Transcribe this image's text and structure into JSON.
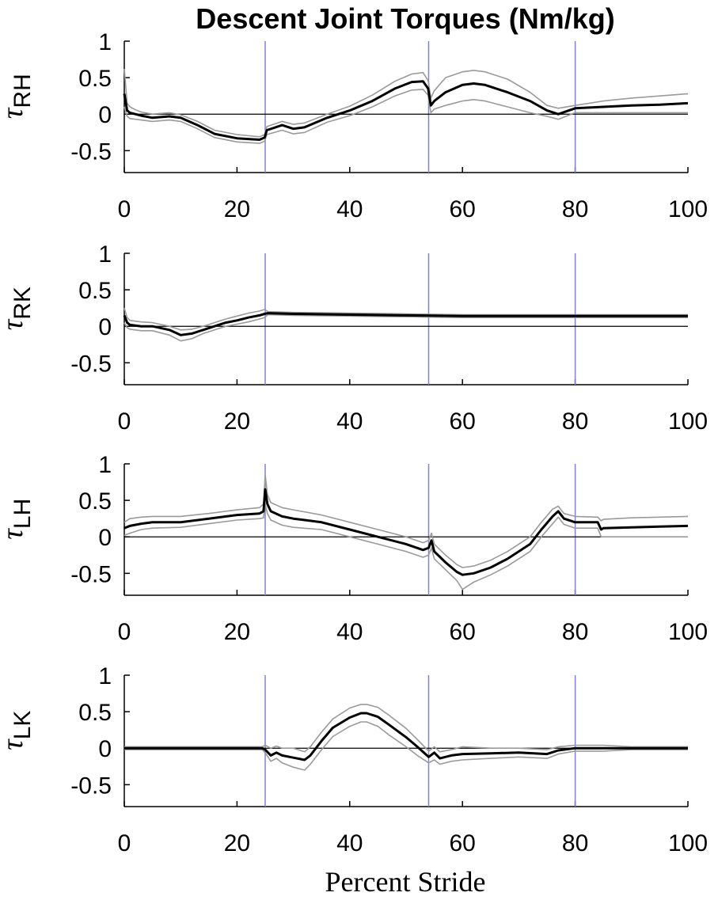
{
  "figure": {
    "title": "Descent Joint Torques (Nm/kg)",
    "xlabel": "Percent Stride"
  },
  "colors": {
    "mean_line": "#000000",
    "band_line": "#9a9a9a",
    "phase_line": "#8080e0",
    "zero_line": "#000000"
  },
  "chart_data": [
    {
      "type": "line",
      "ylabel": {
        "symbol": "τ",
        "subscript": "RH"
      },
      "xlim": [
        0,
        100
      ],
      "ylim": [
        -0.8,
        1
      ],
      "x_ticks": [
        0,
        20,
        40,
        60,
        80,
        100
      ],
      "x_tick_labels": [
        "0",
        "20",
        "40",
        "60",
        "80",
        "100"
      ],
      "y_ticks": [
        1,
        0.5,
        0,
        -0.5
      ],
      "y_tick_labels": [
        "1",
        "0.5",
        "0",
        "-0.5"
      ],
      "phase_lines_x": [
        25,
        54,
        80
      ],
      "x": [
        0,
        0.5,
        1,
        2,
        3,
        5,
        8,
        10,
        13,
        16,
        20,
        24,
        24.9,
        25.3,
        28,
        30,
        32,
        36,
        40,
        44,
        48,
        51,
        53,
        53.9,
        54.4,
        55,
        57,
        60,
        62,
        64,
        68,
        72,
        75,
        77,
        80,
        85,
        90,
        95,
        100
      ],
      "series": [
        {
          "role": "mean",
          "values": [
            0.28,
            0.05,
            0.02,
            0.0,
            -0.02,
            -0.05,
            -0.03,
            -0.05,
            -0.15,
            -0.27,
            -0.33,
            -0.35,
            -0.32,
            -0.22,
            -0.15,
            -0.2,
            -0.18,
            -0.05,
            0.05,
            0.18,
            0.35,
            0.44,
            0.45,
            0.35,
            0.12,
            0.18,
            0.3,
            0.4,
            0.42,
            0.4,
            0.3,
            0.18,
            0.05,
            0.0,
            0.08,
            0.1,
            0.12,
            0.13,
            0.15
          ]
        },
        {
          "role": "upper",
          "values": [
            0.62,
            0.15,
            0.1,
            0.06,
            0.03,
            0.0,
            0.02,
            -0.01,
            -0.1,
            -0.22,
            -0.28,
            -0.31,
            -0.28,
            -0.17,
            -0.1,
            -0.14,
            -0.12,
            0.0,
            0.11,
            0.26,
            0.45,
            0.55,
            0.57,
            0.46,
            0.22,
            0.32,
            0.5,
            0.58,
            0.6,
            0.58,
            0.48,
            0.3,
            0.12,
            0.08,
            0.12,
            0.18,
            0.22,
            0.25,
            0.28
          ]
        },
        {
          "role": "lower",
          "values": [
            0.1,
            -0.03,
            -0.06,
            -0.07,
            -0.08,
            -0.1,
            -0.08,
            -0.1,
            -0.2,
            -0.32,
            -0.38,
            -0.4,
            -0.37,
            -0.28,
            -0.22,
            -0.27,
            -0.25,
            -0.11,
            -0.02,
            0.1,
            0.25,
            0.33,
            0.34,
            0.26,
            0.02,
            0.07,
            0.12,
            0.18,
            0.2,
            0.18,
            0.1,
            0.02,
            -0.03,
            -0.07,
            0.02,
            0.02,
            0.02,
            0.02,
            0.02
          ]
        }
      ]
    },
    {
      "type": "line",
      "ylabel": {
        "symbol": "τ",
        "subscript": "RK"
      },
      "xlim": [
        0,
        100
      ],
      "ylim": [
        -0.8,
        1
      ],
      "x_ticks": [
        0,
        20,
        40,
        60,
        80,
        100
      ],
      "x_tick_labels": [
        "0",
        "20",
        "40",
        "60",
        "80",
        "100"
      ],
      "y_ticks": [
        1,
        0.5,
        0,
        -0.5
      ],
      "y_tick_labels": [
        "1",
        "0.5",
        "0",
        "-0.5"
      ],
      "phase_lines_x": [
        25,
        54,
        80
      ],
      "x": [
        0,
        0.5,
        1,
        3,
        5,
        8,
        10,
        12,
        14,
        16,
        18,
        20,
        22,
        24,
        24.9,
        25.5,
        30,
        40,
        50,
        60,
        70,
        80,
        90,
        100
      ],
      "series": [
        {
          "role": "mean",
          "values": [
            0.15,
            0.05,
            0.02,
            0.0,
            0.0,
            -0.05,
            -0.12,
            -0.1,
            -0.05,
            0.0,
            0.05,
            0.08,
            0.12,
            0.15,
            0.17,
            0.18,
            0.17,
            0.16,
            0.15,
            0.14,
            0.14,
            0.14,
            0.14,
            0.14
          ]
        },
        {
          "role": "upper",
          "values": [
            0.25,
            0.12,
            0.08,
            0.06,
            0.05,
            0.0,
            -0.05,
            -0.04,
            0.0,
            0.05,
            0.1,
            0.14,
            0.18,
            0.21,
            0.23,
            0.2,
            0.19,
            0.18,
            0.17,
            0.16,
            0.16,
            0.16,
            0.16,
            0.16
          ]
        },
        {
          "role": "lower",
          "values": [
            0.05,
            -0.02,
            -0.04,
            -0.06,
            -0.06,
            -0.12,
            -0.2,
            -0.17,
            -0.1,
            -0.05,
            0.0,
            0.03,
            0.06,
            0.1,
            0.12,
            0.16,
            0.15,
            0.14,
            0.13,
            0.12,
            0.12,
            0.12,
            0.12,
            0.12
          ]
        }
      ]
    },
    {
      "type": "line",
      "ylabel": {
        "symbol": "τ",
        "subscript": "LH"
      },
      "xlim": [
        0,
        100
      ],
      "ylim": [
        -0.8,
        1
      ],
      "x_ticks": [
        0,
        20,
        40,
        60,
        80,
        100
      ],
      "x_tick_labels": [
        "0",
        "20",
        "40",
        "60",
        "80",
        "100"
      ],
      "y_ticks": [
        1,
        0.5,
        0,
        -0.5
      ],
      "y_tick_labels": [
        "1",
        "0.5",
        "0",
        "-0.5"
      ],
      "phase_lines_x": [
        25,
        54,
        80
      ],
      "x": [
        0,
        1,
        3,
        5,
        10,
        15,
        20,
        24,
        24.7,
        25,
        25.4,
        26,
        28,
        30,
        35,
        40,
        45,
        50,
        53,
        54,
        54.5,
        55,
        57,
        59,
        60,
        62,
        65,
        68,
        72,
        74,
        76,
        77,
        78,
        80,
        84,
        84.6,
        85,
        90,
        95,
        100
      ],
      "series": [
        {
          "role": "mean",
          "values": [
            0.12,
            0.15,
            0.18,
            0.2,
            0.2,
            0.25,
            0.3,
            0.32,
            0.35,
            0.65,
            0.45,
            0.35,
            0.28,
            0.25,
            0.2,
            0.1,
            0.0,
            -0.1,
            -0.18,
            -0.15,
            -0.05,
            -0.2,
            -0.35,
            -0.48,
            -0.52,
            -0.5,
            -0.42,
            -0.3,
            -0.1,
            0.1,
            0.28,
            0.35,
            0.25,
            0.2,
            0.2,
            0.1,
            0.12,
            0.13,
            0.14,
            0.15
          ]
        },
        {
          "role": "upper",
          "values": [
            0.2,
            0.25,
            0.27,
            0.28,
            0.28,
            0.32,
            0.37,
            0.4,
            0.45,
            0.85,
            0.58,
            0.47,
            0.4,
            0.37,
            0.3,
            0.2,
            0.1,
            0.0,
            -0.08,
            -0.05,
            0.05,
            -0.1,
            -0.25,
            -0.38,
            -0.42,
            -0.4,
            -0.32,
            -0.2,
            0.0,
            0.2,
            0.38,
            0.42,
            0.32,
            0.28,
            0.27,
            0.22,
            0.24,
            0.26,
            0.27,
            0.28
          ]
        },
        {
          "role": "lower",
          "values": [
            0.02,
            0.05,
            0.1,
            0.12,
            0.13,
            0.18,
            0.23,
            0.25,
            0.26,
            0.45,
            0.32,
            0.23,
            0.16,
            0.13,
            0.1,
            0.0,
            -0.1,
            -0.2,
            -0.28,
            -0.25,
            -0.15,
            -0.3,
            -0.45,
            -0.6,
            -0.72,
            -0.62,
            -0.52,
            -0.4,
            -0.2,
            0.0,
            0.18,
            0.27,
            0.17,
            0.12,
            0.12,
            0.0,
            0.0,
            0.0,
            0.0,
            0.0
          ]
        }
      ]
    },
    {
      "type": "line",
      "ylabel": {
        "symbol": "τ",
        "subscript": "LK"
      },
      "xlim": [
        0,
        100
      ],
      "ylim": [
        -0.8,
        1
      ],
      "x_ticks": [
        0,
        20,
        40,
        60,
        80,
        100
      ],
      "x_tick_labels": [
        "0",
        "20",
        "40",
        "60",
        "80",
        "100"
      ],
      "y_ticks": [
        1,
        0.5,
        0,
        -0.5
      ],
      "y_tick_labels": [
        "1",
        "0.5",
        "0",
        "-0.5"
      ],
      "phase_lines_x": [
        25,
        54,
        80
      ],
      "x": [
        0,
        10,
        20,
        24.5,
        25,
        26,
        27,
        28,
        30,
        32,
        33,
        35,
        37,
        40,
        42,
        43,
        45,
        47,
        50,
        52,
        54,
        55,
        56,
        58,
        60,
        65,
        70,
        75,
        77,
        80,
        85,
        90,
        100
      ],
      "series": [
        {
          "role": "mean",
          "values": [
            0.0,
            0.0,
            0.0,
            0.0,
            -0.02,
            -0.1,
            -0.06,
            -0.1,
            -0.13,
            -0.16,
            -0.1,
            0.1,
            0.28,
            0.42,
            0.48,
            0.48,
            0.43,
            0.32,
            0.15,
            0.02,
            -0.12,
            -0.06,
            -0.14,
            -0.1,
            -0.08,
            -0.07,
            -0.06,
            -0.08,
            -0.03,
            0.0,
            0.0,
            0.0,
            0.0
          ]
        },
        {
          "role": "upper",
          "values": [
            0.02,
            0.02,
            0.02,
            0.02,
            0.04,
            0.0,
            0.03,
            0.0,
            0.0,
            -0.05,
            0.02,
            0.22,
            0.4,
            0.55,
            0.6,
            0.6,
            0.56,
            0.45,
            0.27,
            0.12,
            -0.04,
            0.02,
            -0.05,
            -0.02,
            0.02,
            0.0,
            0.0,
            -0.02,
            0.02,
            0.04,
            0.04,
            0.02,
            0.02
          ]
        },
        {
          "role": "lower",
          "values": [
            -0.02,
            -0.02,
            -0.02,
            -0.02,
            -0.06,
            -0.18,
            -0.14,
            -0.2,
            -0.26,
            -0.3,
            -0.22,
            -0.02,
            0.16,
            0.3,
            0.36,
            0.36,
            0.3,
            0.18,
            0.02,
            -0.1,
            -0.2,
            -0.16,
            -0.22,
            -0.18,
            -0.16,
            -0.14,
            -0.12,
            -0.14,
            -0.08,
            -0.04,
            -0.04,
            -0.02,
            -0.02
          ]
        }
      ]
    }
  ]
}
